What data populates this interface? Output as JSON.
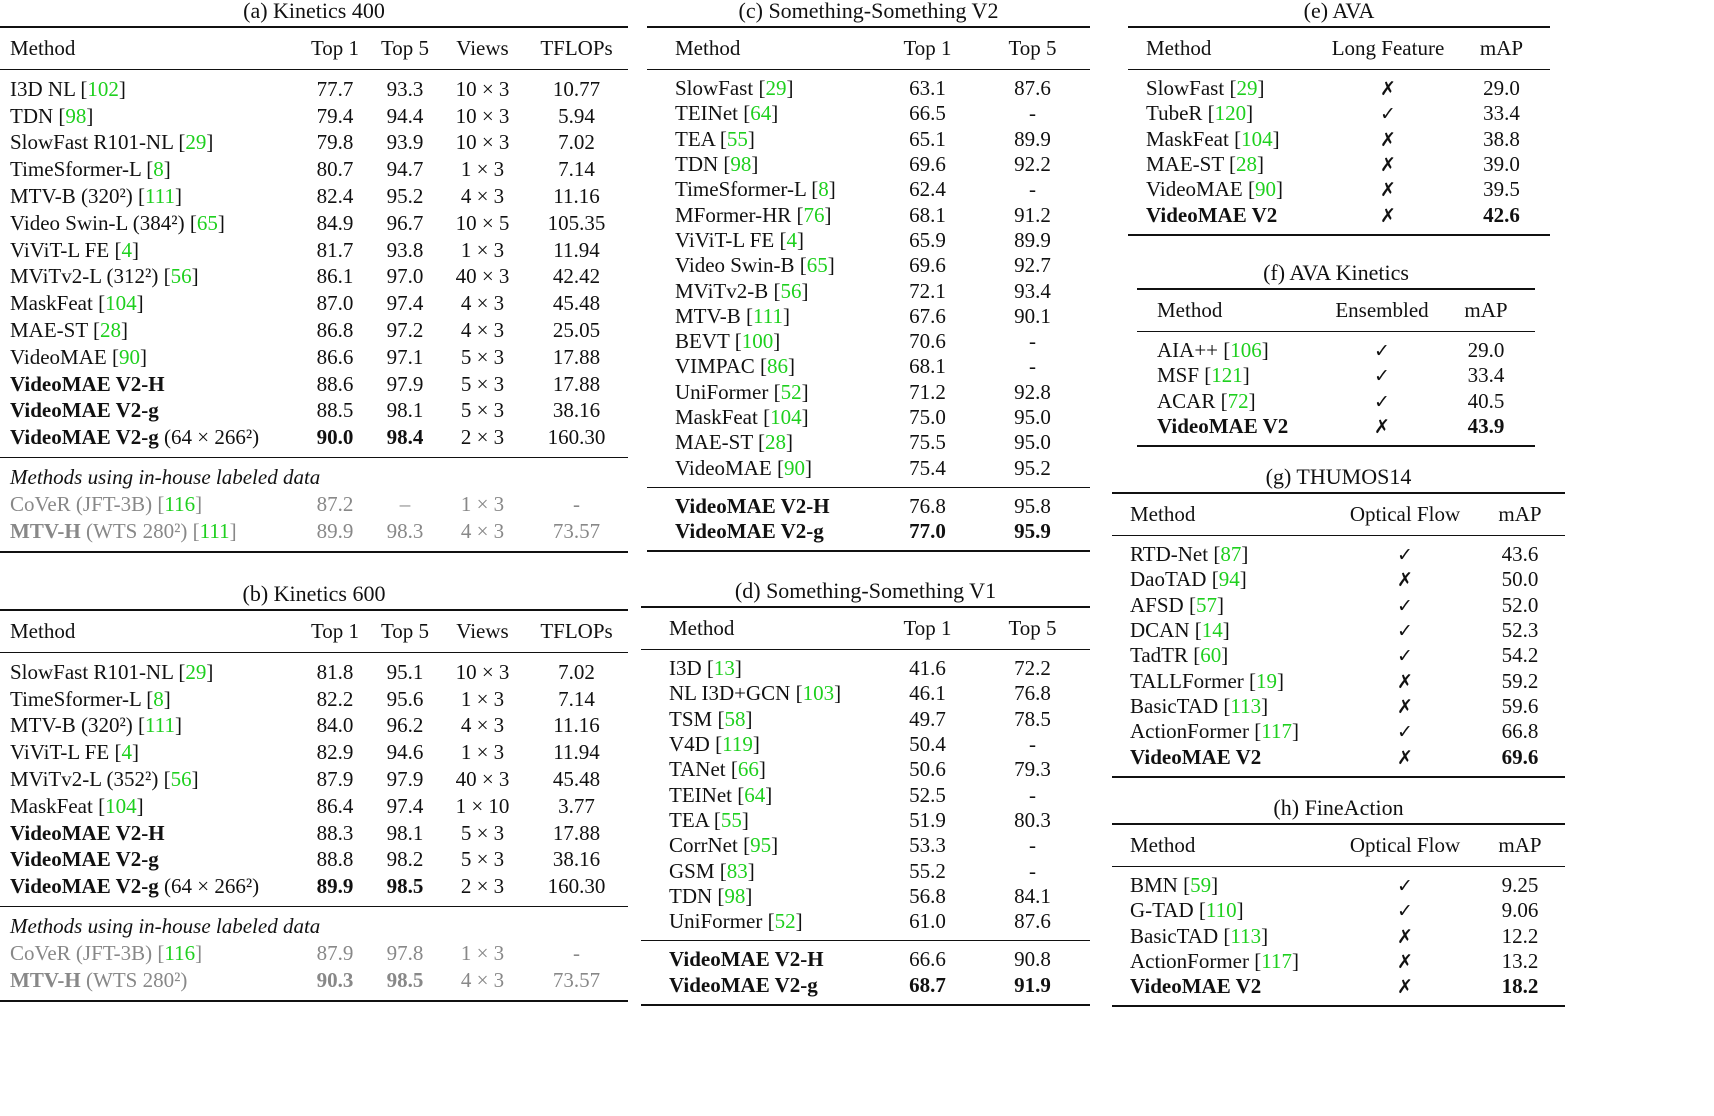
{
  "colors": {
    "reference": "#1ed01e",
    "gray_text": "#888888"
  },
  "tables": [
    {
      "id": "a",
      "title": "(a) Kinetics 400",
      "columns": [
        "Method",
        "Top 1",
        "Top 5",
        "Views",
        "TFLOPs"
      ],
      "groups": [
        {
          "rows": [
            {
              "method": "I3D NL",
              "ref": "102",
              "cells": [
                "77.7",
                "93.3",
                "10 × 3",
                "10.77"
              ]
            },
            {
              "method": "TDN",
              "ref": "98",
              "cells": [
                "79.4",
                "94.4",
                "10 × 3",
                "5.94"
              ]
            },
            {
              "method": "SlowFast R101-NL",
              "ref": "29",
              "cells": [
                "79.8",
                "93.9",
                "10 × 3",
                "7.02"
              ]
            },
            {
              "method": "TimeSformer-L",
              "ref": "8",
              "cells": [
                "80.7",
                "94.7",
                "1 × 3",
                "7.14"
              ]
            },
            {
              "method": "MTV-B (320²)",
              "ref": "111",
              "cells": [
                "82.4",
                "95.2",
                "4 × 3",
                "11.16"
              ]
            },
            {
              "method": "Video Swin-L (384²)",
              "ref": "65",
              "cells": [
                "84.9",
                "96.7",
                "10 × 5",
                "105.35"
              ]
            },
            {
              "method": "ViViT-L FE",
              "ref": "4",
              "cells": [
                "81.7",
                "93.8",
                "1 × 3",
                "11.94"
              ]
            },
            {
              "method": "MViTv2-L (312²)",
              "ref": "56",
              "cells": [
                "86.1",
                "97.0",
                "40 × 3",
                "42.42"
              ]
            },
            {
              "method": "MaskFeat",
              "ref": "104",
              "cells": [
                "87.0",
                "97.4",
                "4 × 3",
                "45.48"
              ]
            },
            {
              "method": "MAE-ST",
              "ref": "28",
              "cells": [
                "86.8",
                "97.2",
                "4 × 3",
                "25.05"
              ]
            },
            {
              "method": "VideoMAE",
              "ref": "90",
              "cells": [
                "86.6",
                "97.1",
                "5 × 3",
                "17.88"
              ]
            },
            {
              "method": "VideoMAE V2-H",
              "bold": true,
              "cells": [
                "88.6",
                "97.9",
                "5 × 3",
                "17.88"
              ]
            },
            {
              "method": "VideoMAE V2-g",
              "bold": true,
              "cells": [
                "88.5",
                "98.1",
                "5 × 3",
                "38.16"
              ]
            },
            {
              "method": "VideoMAE V2-g",
              "bold": true,
              "extra": " (64 × 266²)",
              "cells": [
                "90.0",
                "98.4",
                "2 × 3",
                "160.30"
              ],
              "bold_cells": [
                0,
                1
              ]
            }
          ]
        },
        {
          "rows": [
            {
              "note": "Methods using in-house labeled data"
            },
            {
              "method": "CoVeR (JFT-3B)",
              "ref": "116",
              "gray": true,
              "cells": [
                "87.2",
                "–",
                "1 × 3",
                "-"
              ]
            },
            {
              "method": "MTV-H",
              "bold": true,
              "extra": " (WTS 280²)",
              "ref": "111",
              "gray": true,
              "cells": [
                "89.9",
                "98.3",
                "4 × 3",
                "73.57"
              ]
            }
          ]
        }
      ]
    },
    {
      "id": "b",
      "title": "(b) Kinetics 600",
      "columns": [
        "Method",
        "Top 1",
        "Top 5",
        "Views",
        "TFLOPs"
      ],
      "groups": [
        {
          "rows": [
            {
              "method": "SlowFast R101-NL",
              "ref": "29",
              "cells": [
                "81.8",
                "95.1",
                "10 × 3",
                "7.02"
              ]
            },
            {
              "method": "TimeSformer-L",
              "ref": "8",
              "cells": [
                "82.2",
                "95.6",
                "1 × 3",
                "7.14"
              ]
            },
            {
              "method": "MTV-B (320²)",
              "ref": "111",
              "cells": [
                "84.0",
                "96.2",
                "4 × 3",
                "11.16"
              ]
            },
            {
              "method": "ViViT-L FE",
              "ref": "4",
              "cells": [
                "82.9",
                "94.6",
                "1 × 3",
                "11.94"
              ]
            },
            {
              "method": "MViTv2-L (352²)",
              "ref": "56",
              "cells": [
                "87.9",
                "97.9",
                "40 × 3",
                "45.48"
              ]
            },
            {
              "method": "MaskFeat",
              "ref": "104",
              "cells": [
                "86.4",
                "97.4",
                "1 × 10",
                "3.77"
              ]
            },
            {
              "method": "VideoMAE V2-H",
              "bold": true,
              "cells": [
                "88.3",
                "98.1",
                "5 × 3",
                "17.88"
              ]
            },
            {
              "method": "VideoMAE V2-g",
              "bold": true,
              "cells": [
                "88.8",
                "98.2",
                "5 × 3",
                "38.16"
              ]
            },
            {
              "method": "VideoMAE V2-g",
              "bold": true,
              "extra": " (64 × 266²)",
              "cells": [
                "89.9",
                "98.5",
                "2 × 3",
                "160.30"
              ],
              "bold_cells": [
                0,
                1
              ]
            }
          ]
        },
        {
          "rows": [
            {
              "note": "Methods using in-house labeled data"
            },
            {
              "method": "CoVeR (JFT-3B)",
              "ref": "116",
              "gray": true,
              "cells": [
                "87.9",
                "97.8",
                "1 × 3",
                "-"
              ]
            },
            {
              "method": "MTV-H",
              "bold": true,
              "extra": " (WTS 280²)",
              "gray": true,
              "cells": [
                "90.3",
                "98.5",
                "4 × 3",
                "73.57"
              ],
              "bold_cells": [
                0,
                1
              ]
            }
          ]
        }
      ]
    },
    {
      "id": "c",
      "title": "(c) Something-Something V2",
      "columns": [
        "Method",
        "Top 1",
        "Top 5"
      ],
      "groups": [
        {
          "rows": [
            {
              "method": "SlowFast",
              "ref": "29",
              "cells": [
                "63.1",
                "87.6"
              ]
            },
            {
              "method": "TEINet",
              "ref": "64",
              "cells": [
                "66.5",
                "-"
              ]
            },
            {
              "method": "TEA",
              "ref": "55",
              "cells": [
                "65.1",
                "89.9"
              ]
            },
            {
              "method": "TDN",
              "ref": "98",
              "cells": [
                "69.6",
                "92.2"
              ]
            },
            {
              "method": "TimeSformer-L",
              "ref": "8",
              "cells": [
                "62.4",
                "-"
              ]
            },
            {
              "method": "MFormer-HR",
              "ref": "76",
              "cells": [
                "68.1",
                "91.2"
              ]
            },
            {
              "method": "ViViT-L FE",
              "ref": "4",
              "cells": [
                "65.9",
                "89.9"
              ]
            },
            {
              "method": "Video Swin-B",
              "ref": "65",
              "cells": [
                "69.6",
                "92.7"
              ]
            },
            {
              "method": "MViTv2-B",
              "ref": "56",
              "cells": [
                "72.1",
                "93.4"
              ]
            },
            {
              "method": "MTV-B",
              "ref": "111",
              "cells": [
                "67.6",
                "90.1"
              ]
            },
            {
              "method": "BEVT",
              "ref": "100",
              "cells": [
                "70.6",
                "-"
              ]
            },
            {
              "method": "VIMPAC",
              "ref": "86",
              "cells": [
                "68.1",
                "-"
              ]
            },
            {
              "method": "UniFormer",
              "ref": "52",
              "cells": [
                "71.2",
                "92.8"
              ]
            },
            {
              "method": "MaskFeat",
              "ref": "104",
              "cells": [
                "75.0",
                "95.0"
              ]
            },
            {
              "method": "MAE-ST",
              "ref": "28",
              "cells": [
                "75.5",
                "95.0"
              ]
            },
            {
              "method": "VideoMAE",
              "ref": "90",
              "cells": [
                "75.4",
                "95.2"
              ]
            }
          ]
        },
        {
          "rows": [
            {
              "method": "VideoMAE V2-H",
              "bold": true,
              "cells": [
                "76.8",
                "95.8"
              ]
            },
            {
              "method": "VideoMAE V2-g",
              "bold": true,
              "cells": [
                "77.0",
                "95.9"
              ],
              "bold_cells": [
                0,
                1
              ]
            }
          ]
        }
      ]
    },
    {
      "id": "d",
      "title": "(d) Something-Something V1",
      "columns": [
        "Method",
        "Top 1",
        "Top 5"
      ],
      "groups": [
        {
          "rows": [
            {
              "method": "I3D",
              "ref": "13",
              "cells": [
                "41.6",
                "72.2"
              ]
            },
            {
              "method": "NL I3D+GCN",
              "ref": "103",
              "cells": [
                "46.1",
                "76.8"
              ]
            },
            {
              "method": "TSM",
              "ref": "58",
              "cells": [
                "49.7",
                "78.5"
              ]
            },
            {
              "method": "V4D",
              "ref": "119",
              "cells": [
                "50.4",
                "-"
              ]
            },
            {
              "method": "TANet",
              "ref": "66",
              "cells": [
                "50.6",
                "79.3"
              ]
            },
            {
              "method": "TEINet",
              "ref": "64",
              "cells": [
                "52.5",
                "-"
              ]
            },
            {
              "method": "TEA",
              "ref": "55",
              "cells": [
                "51.9",
                "80.3"
              ]
            },
            {
              "method": "CorrNet",
              "ref": "95",
              "cells": [
                "53.3",
                "-"
              ]
            },
            {
              "method": "GSM",
              "ref": "83",
              "cells": [
                "55.2",
                "-"
              ]
            },
            {
              "method": "TDN",
              "ref": "98",
              "cells": [
                "56.8",
                "84.1"
              ]
            },
            {
              "method": "UniFormer",
              "ref": "52",
              "cells": [
                "61.0",
                "87.6"
              ]
            }
          ]
        },
        {
          "rows": [
            {
              "method": "VideoMAE V2-H",
              "bold": true,
              "cells": [
                "66.6",
                "90.8"
              ]
            },
            {
              "method": "VideoMAE V2-g",
              "bold": true,
              "cells": [
                "68.7",
                "91.9"
              ],
              "bold_cells": [
                0,
                1
              ]
            }
          ]
        }
      ]
    },
    {
      "id": "e",
      "title": "(e) AVA",
      "columns": [
        "Method",
        "Long Feature",
        "mAP"
      ],
      "groups": [
        {
          "rows": [
            {
              "method": "SlowFast",
              "ref": "29",
              "cells": [
                "✗",
                "29.0"
              ]
            },
            {
              "method": "TubeR",
              "ref": "120",
              "cells": [
                "✓",
                "33.4"
              ]
            },
            {
              "method": "MaskFeat",
              "ref": "104",
              "cells": [
                "✗",
                "38.8"
              ]
            },
            {
              "method": "MAE-ST",
              "ref": "28",
              "cells": [
                "✗",
                "39.0"
              ]
            },
            {
              "method": "VideoMAE",
              "ref": "90",
              "cells": [
                "✗",
                "39.5"
              ]
            },
            {
              "method": "VideoMAE V2",
              "bold": true,
              "cells": [
                "✗",
                "42.6"
              ],
              "bold_cells": [
                1
              ]
            }
          ]
        }
      ]
    },
    {
      "id": "f",
      "title": "(f) AVA Kinetics",
      "columns": [
        "Method",
        "Ensembled",
        "mAP"
      ],
      "groups": [
        {
          "rows": [
            {
              "method": "AIA++",
              "ref": "106",
              "cells": [
                "✓",
                "29.0"
              ]
            },
            {
              "method": "MSF",
              "ref": "121",
              "cells": [
                "✓",
                "33.4"
              ]
            },
            {
              "method": "ACAR",
              "ref": "72",
              "cells": [
                "✓",
                "40.5"
              ]
            },
            {
              "method": "VideoMAE V2",
              "bold": true,
              "cells": [
                "✗",
                "43.9"
              ],
              "bold_cells": [
                1
              ]
            }
          ]
        }
      ]
    },
    {
      "id": "g",
      "title": "(g) THUMOS14",
      "columns": [
        "Method",
        "Optical Flow",
        "mAP"
      ],
      "groups": [
        {
          "rows": [
            {
              "method": "RTD-Net",
              "ref": "87",
              "cells": [
                "✓",
                "43.6"
              ]
            },
            {
              "method": "DaoTAD",
              "ref": "94",
              "cells": [
                "✗",
                "50.0"
              ]
            },
            {
              "method": "AFSD",
              "ref": "57",
              "cells": [
                "✓",
                "52.0"
              ]
            },
            {
              "method": "DCAN",
              "ref": "14",
              "cells": [
                "✓",
                "52.3"
              ]
            },
            {
              "method": "TadTR",
              "ref": "60",
              "cells": [
                "✓",
                "54.2"
              ]
            },
            {
              "method": "TALLFormer",
              "ref": "19",
              "cells": [
                "✗",
                "59.2"
              ]
            },
            {
              "method": "BasicTAD",
              "ref": "113",
              "cells": [
                "✗",
                "59.6"
              ]
            },
            {
              "method": "ActionFormer",
              "ref": "117",
              "cells": [
                "✓",
                "66.8"
              ]
            },
            {
              "method": "VideoMAE V2",
              "bold": true,
              "cells": [
                "✗",
                "69.6"
              ],
              "bold_cells": [
                1
              ]
            }
          ]
        }
      ]
    },
    {
      "id": "h",
      "title": "(h) FineAction",
      "columns": [
        "Method",
        "Optical Flow",
        "mAP"
      ],
      "groups": [
        {
          "rows": [
            {
              "method": "BMN",
              "ref": "59",
              "cells": [
                "✓",
                "9.25"
              ]
            },
            {
              "method": "G-TAD",
              "ref": "110",
              "cells": [
                "✓",
                "9.06"
              ]
            },
            {
              "method": "BasicTAD",
              "ref": "113",
              "cells": [
                "✗",
                "12.2"
              ]
            },
            {
              "method": "ActionFormer",
              "ref": "117",
              "cells": [
                "✗",
                "13.2"
              ]
            },
            {
              "method": "VideoMAE V2",
              "bold": true,
              "cells": [
                "✗",
                "18.2"
              ],
              "bold_cells": [
                1
              ]
            }
          ]
        }
      ]
    }
  ]
}
